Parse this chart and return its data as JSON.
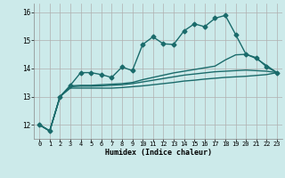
{
  "title": "",
  "xlabel": "Humidex (Indice chaleur)",
  "ylabel": "",
  "background_color": "#cceaea",
  "grid_color": "#b0b0b0",
  "line_color": "#1a6b6b",
  "xlim": [
    -0.5,
    23.5
  ],
  "ylim": [
    11.5,
    16.3
  ],
  "x_ticks": [
    0,
    1,
    2,
    3,
    4,
    5,
    6,
    7,
    8,
    9,
    10,
    11,
    12,
    13,
    14,
    15,
    16,
    17,
    18,
    19,
    20,
    21,
    22,
    23
  ],
  "y_ticks": [
    12,
    13,
    14,
    15,
    16
  ],
  "series1": {
    "x": [
      0,
      1,
      2,
      3,
      4,
      5,
      6,
      7,
      8,
      9,
      10,
      11,
      12,
      13,
      14,
      15,
      16,
      17,
      18,
      19,
      20,
      21,
      22,
      23
    ],
    "y": [
      12.0,
      11.78,
      13.0,
      13.4,
      13.85,
      13.85,
      13.78,
      13.68,
      14.05,
      13.92,
      14.85,
      15.12,
      14.87,
      14.85,
      15.33,
      15.58,
      15.48,
      15.78,
      15.88,
      15.2,
      14.5,
      14.38,
      14.05,
      13.85
    ],
    "marker": "D",
    "markersize": 2.5,
    "linewidth": 1.0
  },
  "series2": {
    "x": [
      0,
      1,
      2,
      3,
      4,
      5,
      6,
      7,
      8,
      9,
      10,
      11,
      12,
      13,
      14,
      15,
      16,
      17,
      18,
      19,
      20,
      21,
      22,
      23
    ],
    "y": [
      12.0,
      11.78,
      13.0,
      13.38,
      13.4,
      13.4,
      13.42,
      13.44,
      13.46,
      13.5,
      13.6,
      13.68,
      13.76,
      13.84,
      13.9,
      13.96,
      14.02,
      14.08,
      14.3,
      14.48,
      14.5,
      14.35,
      14.1,
      13.85
    ],
    "marker": null,
    "linewidth": 1.0
  },
  "series3": {
    "x": [
      0,
      1,
      2,
      3,
      4,
      5,
      6,
      7,
      8,
      9,
      10,
      11,
      12,
      13,
      14,
      15,
      16,
      17,
      18,
      19,
      20,
      21,
      22,
      23
    ],
    "y": [
      12.0,
      11.78,
      13.0,
      13.35,
      13.37,
      13.37,
      13.38,
      13.4,
      13.42,
      13.46,
      13.52,
      13.58,
      13.64,
      13.7,
      13.76,
      13.8,
      13.84,
      13.88,
      13.9,
      13.92,
      13.94,
      13.92,
      13.9,
      13.85
    ],
    "marker": null,
    "linewidth": 1.0
  },
  "series4": {
    "x": [
      0,
      1,
      2,
      3,
      4,
      5,
      6,
      7,
      8,
      9,
      10,
      11,
      12,
      13,
      14,
      15,
      16,
      17,
      18,
      19,
      20,
      21,
      22,
      23
    ],
    "y": [
      12.0,
      11.78,
      13.0,
      13.3,
      13.3,
      13.3,
      13.3,
      13.3,
      13.32,
      13.35,
      13.38,
      13.42,
      13.46,
      13.5,
      13.55,
      13.58,
      13.62,
      13.65,
      13.68,
      13.7,
      13.72,
      13.75,
      13.78,
      13.85
    ],
    "marker": null,
    "linewidth": 1.0
  }
}
